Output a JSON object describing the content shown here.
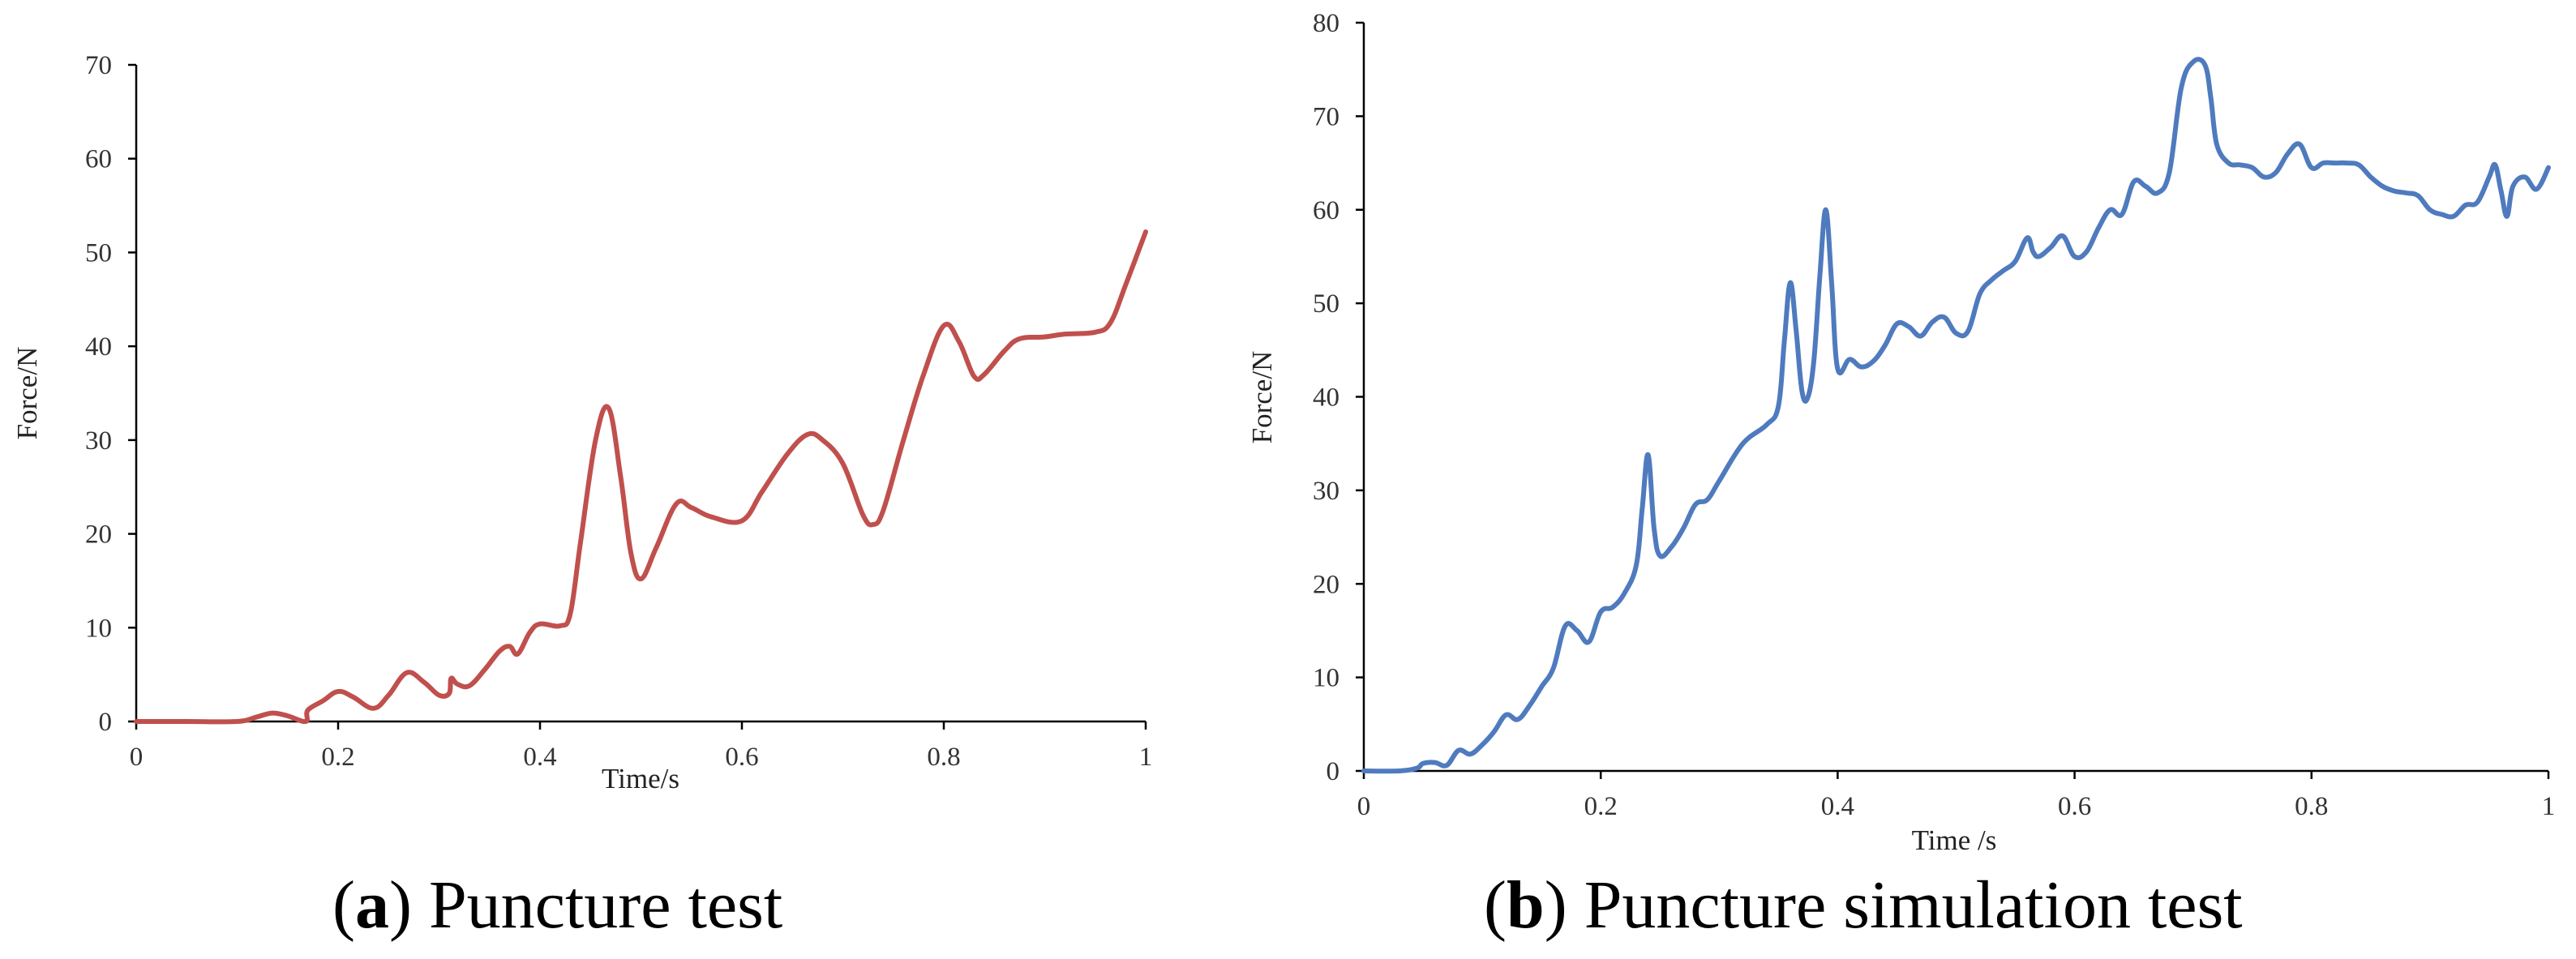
{
  "chart_data": [
    {
      "id": "a",
      "type": "line",
      "title": "",
      "caption": {
        "open": "(",
        "letter": "a",
        "close": ")",
        "text": " Puncture test"
      },
      "xlabel": "Time/s",
      "ylabel": "Force/N",
      "xlim": [
        0,
        1
      ],
      "ylim": [
        0,
        70
      ],
      "xticks": [
        0,
        0.2,
        0.4,
        0.6,
        0.8,
        1
      ],
      "xtick_labels": [
        "0",
        "0.2",
        "0.4",
        "0.6",
        "0.8",
        "1"
      ],
      "yticks": [
        0,
        10,
        20,
        30,
        40,
        50,
        60,
        70
      ],
      "ytick_labels": [
        "0",
        "10",
        "20",
        "30",
        "40",
        "50",
        "60",
        "70"
      ],
      "grid": false,
      "legend": "none",
      "series": [
        {
          "color": "#C0504D",
          "x": [
            0,
            0.05,
            0.1,
            0.12,
            0.135,
            0.15,
            0.168,
            0.17,
            0.185,
            0.2,
            0.215,
            0.235,
            0.25,
            0.268,
            0.285,
            0.3,
            0.31,
            0.312,
            0.318,
            0.33,
            0.345,
            0.36,
            0.37,
            0.378,
            0.39,
            0.4,
            0.42,
            0.43,
            0.44,
            0.455,
            0.468,
            0.48,
            0.49,
            0.5,
            0.515,
            0.535,
            0.55,
            0.57,
            0.6,
            0.62,
            0.645,
            0.665,
            0.68,
            0.7,
            0.72,
            0.73,
            0.74,
            0.76,
            0.78,
            0.8,
            0.815,
            0.83,
            0.84,
            0.86,
            0.875,
            0.9,
            0.92,
            0.95,
            0.965,
            0.98,
            1.0
          ],
          "y": [
            0,
            0,
            0,
            0.5,
            0.9,
            0.6,
            0,
            1.2,
            2.2,
            3.2,
            2.6,
            1.4,
            2.8,
            5.2,
            4.2,
            2.8,
            3.0,
            4.6,
            4.0,
            3.8,
            5.5,
            7.5,
            8.0,
            7.2,
            9.5,
            10.4,
            10.2,
            11.5,
            19.0,
            30.0,
            33.4,
            26.0,
            18.0,
            15.2,
            18.5,
            23.2,
            22.8,
            21.8,
            21.4,
            24.5,
            28.5,
            30.6,
            30.0,
            27.5,
            22.0,
            21.0,
            22.5,
            30.0,
            37.0,
            42.2,
            40.5,
            36.8,
            37.0,
            39.5,
            40.8,
            41.0,
            41.3,
            41.5,
            42.5,
            46.5,
            52.2
          ]
        }
      ]
    },
    {
      "id": "b",
      "type": "line",
      "title": "",
      "caption": {
        "open": "(",
        "letter": "b",
        "close": ")",
        "text": " Puncture simulation test"
      },
      "xlabel": "Time /s",
      "ylabel": "Force/N",
      "xlim": [
        0,
        1
      ],
      "ylim": [
        0,
        80
      ],
      "xticks": [
        0,
        0.2,
        0.4,
        0.6,
        0.8,
        1
      ],
      "xtick_labels": [
        "0",
        "0.2",
        "0.4",
        "0.6",
        "0.8",
        "1"
      ],
      "yticks": [
        0,
        10,
        20,
        30,
        40,
        50,
        60,
        70,
        80
      ],
      "ytick_labels": [
        "0",
        "10",
        "20",
        "30",
        "40",
        "50",
        "60",
        "70",
        "80"
      ],
      "grid": false,
      "legend": "none",
      "series": [
        {
          "color": "#4F7BBE",
          "x": [
            0,
            0.03,
            0.045,
            0.05,
            0.06,
            0.07,
            0.08,
            0.09,
            0.1,
            0.11,
            0.12,
            0.13,
            0.14,
            0.15,
            0.16,
            0.17,
            0.18,
            0.19,
            0.2,
            0.21,
            0.22,
            0.23,
            0.235,
            0.24,
            0.245,
            0.25,
            0.26,
            0.27,
            0.28,
            0.29,
            0.3,
            0.32,
            0.34,
            0.35,
            0.355,
            0.36,
            0.365,
            0.37,
            0.375,
            0.38,
            0.385,
            0.39,
            0.395,
            0.4,
            0.41,
            0.42,
            0.43,
            0.44,
            0.45,
            0.46,
            0.47,
            0.48,
            0.49,
            0.5,
            0.51,
            0.52,
            0.53,
            0.54,
            0.55,
            0.56,
            0.565,
            0.57,
            0.58,
            0.59,
            0.6,
            0.61,
            0.62,
            0.63,
            0.64,
            0.65,
            0.66,
            0.67,
            0.68,
            0.69,
            0.7,
            0.71,
            0.715,
            0.72,
            0.73,
            0.74,
            0.75,
            0.76,
            0.77,
            0.78,
            0.79,
            0.8,
            0.81,
            0.82,
            0.83,
            0.84,
            0.85,
            0.86,
            0.87,
            0.88,
            0.89,
            0.9,
            0.91,
            0.92,
            0.93,
            0.94,
            0.95,
            0.955,
            0.96,
            0.965,
            0.97,
            0.98,
            0.99,
            1.0
          ],
          "y": [
            0,
            0,
            0.3,
            0.8,
            0.9,
            0.6,
            2.2,
            1.8,
            2.8,
            4.2,
            6.0,
            5.5,
            7.0,
            9.0,
            11.0,
            15.5,
            15.0,
            13.8,
            17.0,
            17.5,
            19.0,
            22.0,
            28.0,
            33.8,
            26.0,
            23.0,
            24.0,
            26.0,
            28.5,
            29.0,
            31.0,
            35.0,
            37.0,
            39.0,
            46.0,
            52.2,
            47.0,
            40.5,
            40.0,
            44.0,
            53.0,
            60.0,
            52.0,
            43.0,
            44.0,
            43.2,
            43.8,
            45.5,
            47.8,
            47.5,
            46.5,
            48.0,
            48.5,
            46.8,
            47.0,
            51.0,
            52.5,
            53.5,
            54.5,
            57.0,
            55.5,
            55.0,
            56.0,
            57.2,
            55.0,
            55.5,
            58.0,
            60.0,
            59.5,
            63.0,
            62.5,
            61.8,
            64.0,
            73.0,
            75.8,
            75.5,
            72.0,
            67.0,
            65.0,
            64.8,
            64.5,
            63.5,
            64.0,
            66.0,
            67.0,
            64.5,
            65.0,
            65.0,
            65.0,
            64.8,
            63.5,
            62.5,
            62.0,
            61.8,
            61.5,
            60.0,
            59.5,
            59.3,
            60.5,
            60.8,
            63.5,
            64.8,
            62.0,
            59.3,
            62.5,
            63.5,
            62.2,
            64.5
          ]
        }
      ]
    }
  ]
}
